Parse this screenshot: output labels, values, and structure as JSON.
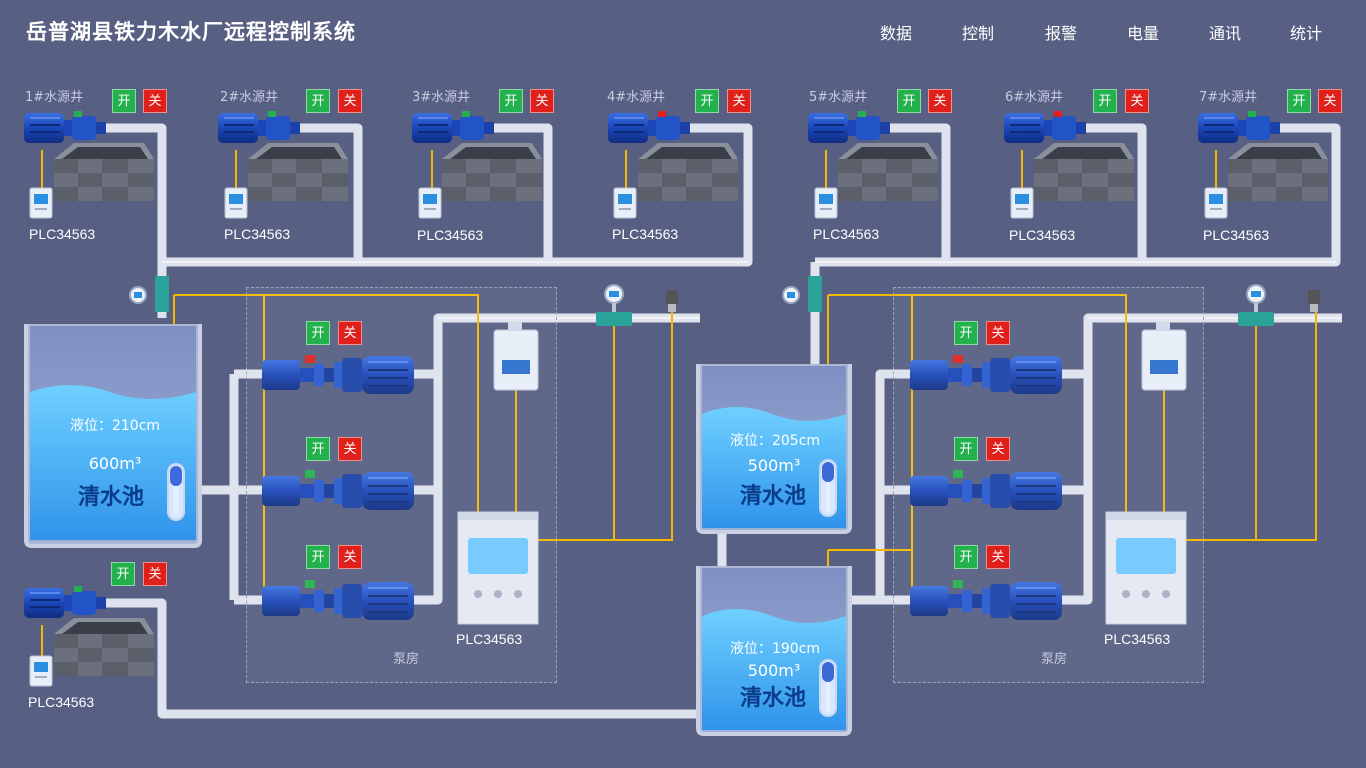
{
  "header": {
    "title": "岳普湖县铁力木水厂远程控制系统",
    "nav": [
      "数据",
      "控制",
      "报警",
      "电量",
      "通讯",
      "统计"
    ]
  },
  "buttons": {
    "on": "开",
    "off": "关"
  },
  "wells": [
    {
      "label": "1#水源井",
      "plc": "PLC34563"
    },
    {
      "label": "2#水源井",
      "plc": "PLC34563"
    },
    {
      "label": "3#水源井",
      "plc": "PLC34563"
    },
    {
      "label": "4#水源井",
      "plc": "PLC34563"
    },
    {
      "label": "5#水源井",
      "plc": "PLC34563"
    },
    {
      "label": "6#水源井",
      "plc": "PLC34563"
    },
    {
      "label": "7#水源井",
      "plc": "PLC34563"
    }
  ],
  "lower_well": {
    "plc": "PLC34563"
  },
  "tanks": [
    {
      "level": "液位：210cm",
      "capacity": "600m³",
      "name": "清水池"
    },
    {
      "level": "液位：205cm",
      "capacity": "500m³",
      "name": "清水池"
    },
    {
      "level": "液位：190cm",
      "capacity": "500m³",
      "name": "清水池"
    }
  ],
  "pump_rooms": [
    {
      "label": "泵房",
      "plc": "PLC34563"
    },
    {
      "label": "泵房",
      "plc": "PLC34563"
    }
  ],
  "colors": {
    "background": "#575f82",
    "pipe": "#dfe3ee",
    "signal": "#f5b800",
    "on": "#22b14c",
    "off": "#e0201b",
    "water": "#4fb6f2"
  }
}
